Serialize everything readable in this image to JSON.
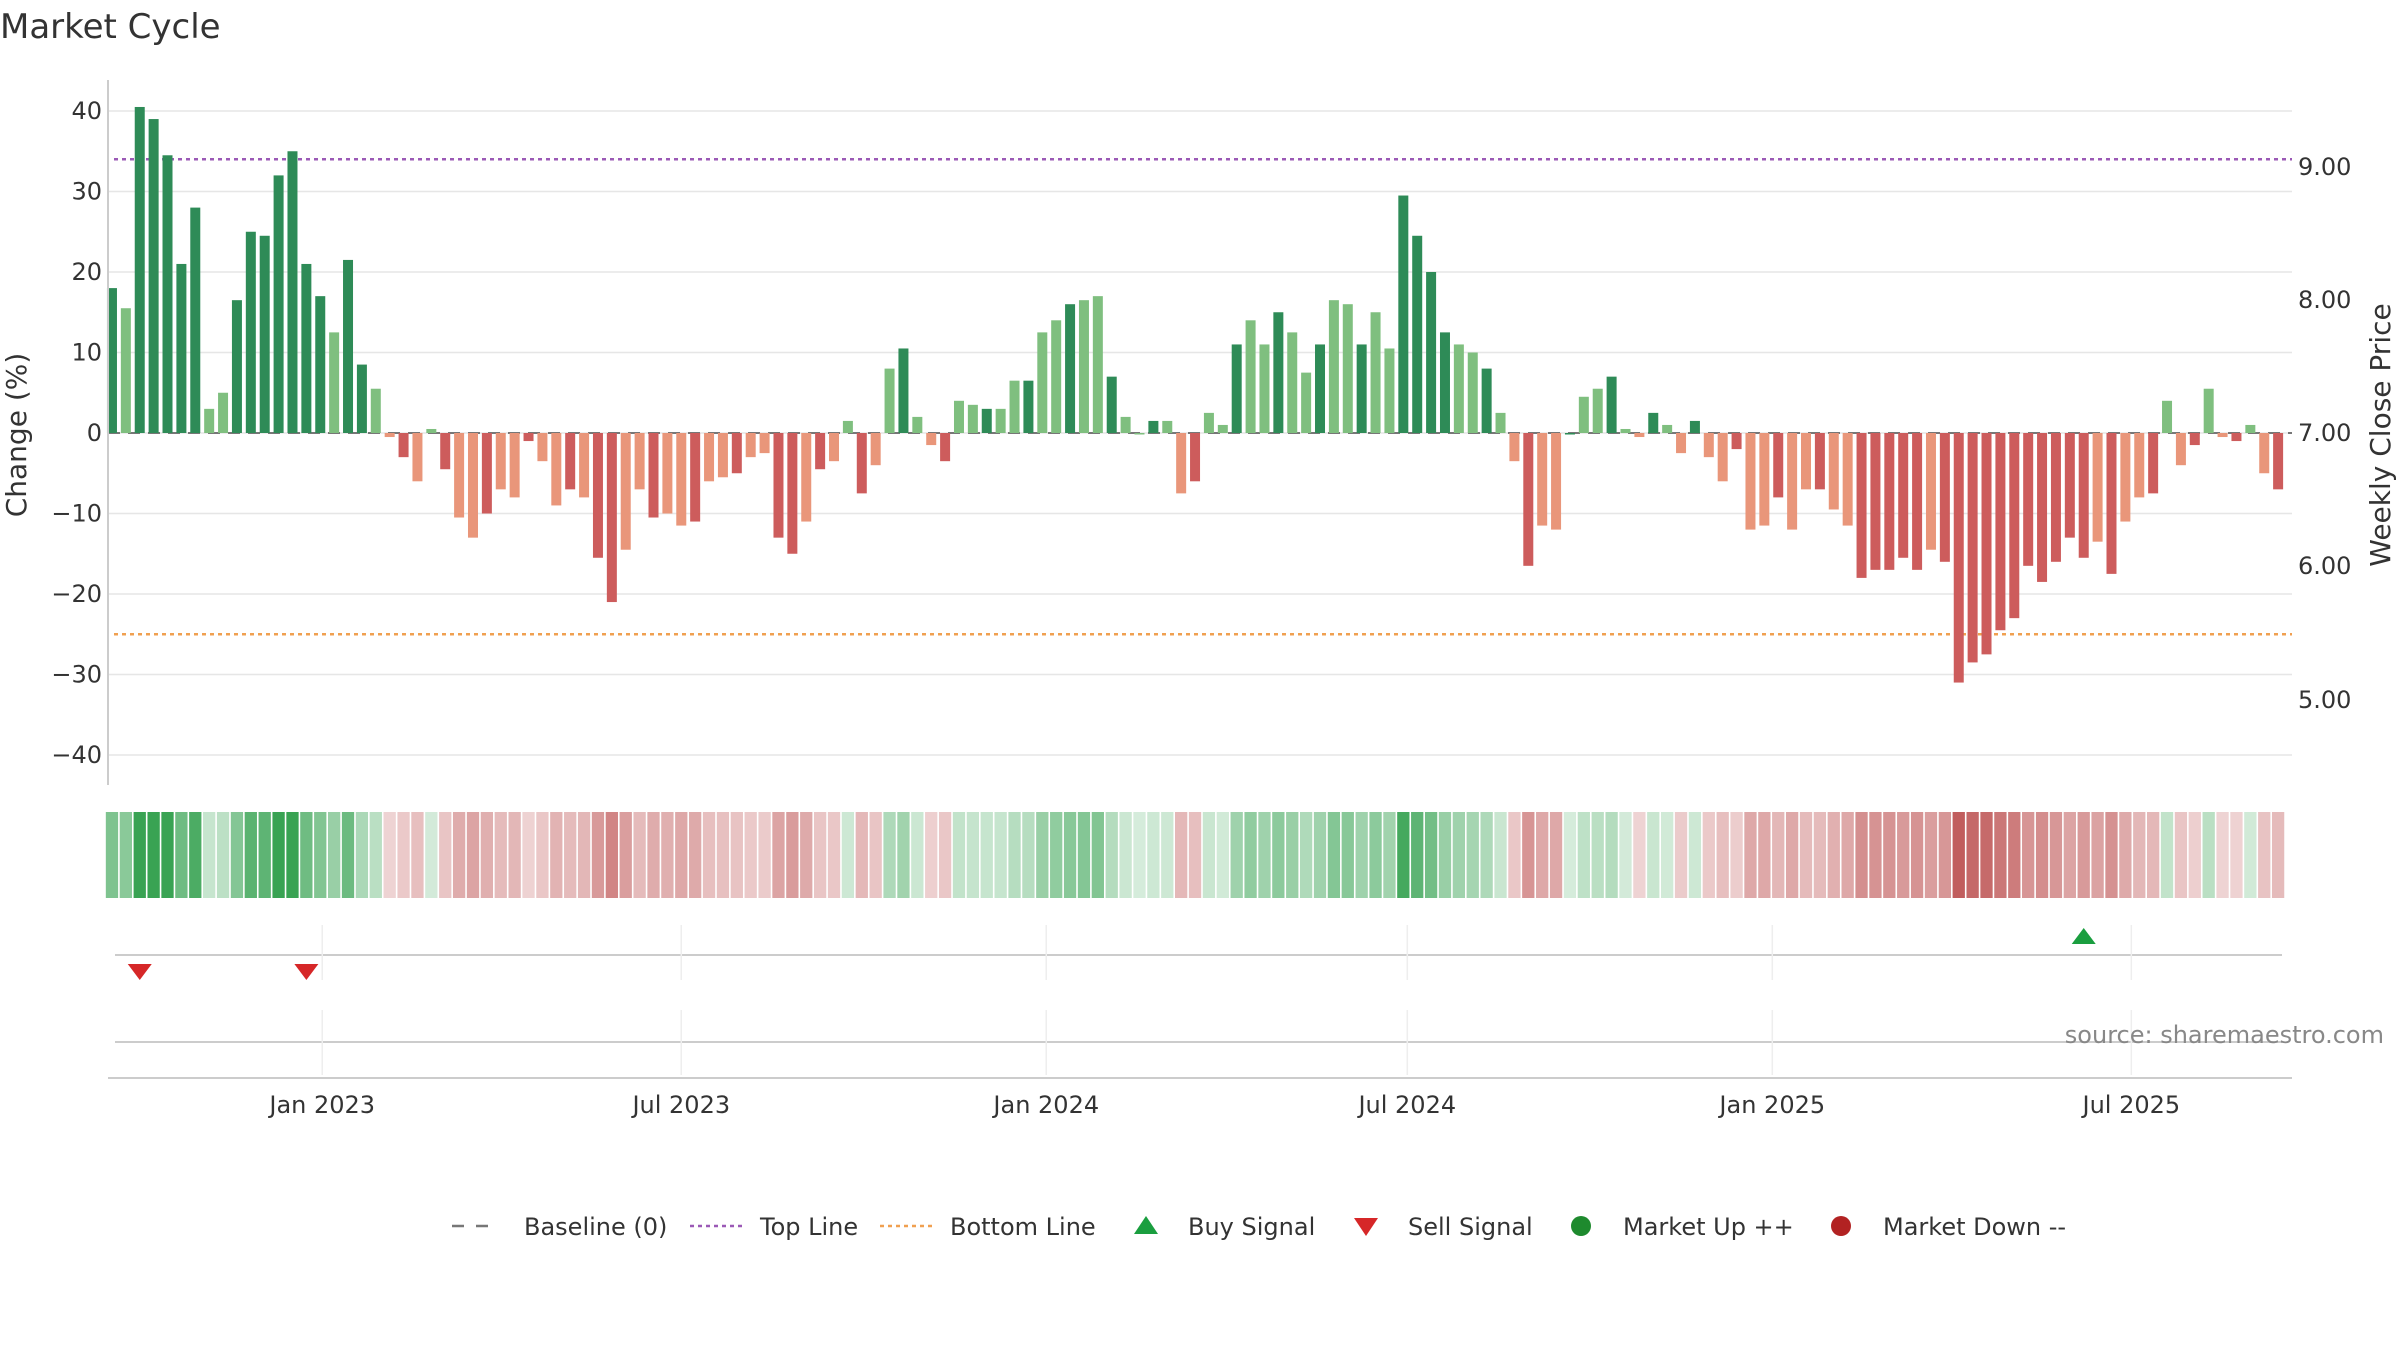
{
  "chart_data": {
    "type": "bar",
    "title": "Market Cycle",
    "ylabel_left": "Change (%)",
    "ylabel_right": "Weekly Close Price",
    "source": "source: sharemaestro.com",
    "ylim_left": [
      -42,
      44
    ],
    "yticks_left": [
      40,
      30,
      20,
      10,
      0,
      -10,
      -20,
      -30,
      -40
    ],
    "yticks_left_labels": [
      "40",
      "30",
      "20",
      "10",
      "0",
      "−10",
      "−20",
      "−30",
      "−40"
    ],
    "yticks_right": [
      9.0,
      8.0,
      7.0,
      6.0,
      5.0
    ],
    "yticks_right_labels": [
      "9.00",
      "8.00",
      "7.00",
      "6.00",
      "5.00"
    ],
    "x_start": "2022-09-15",
    "x_end": "2025-09-20",
    "x_ticks": [
      {
        "date": "2023-01-01",
        "label": "Jan 2023"
      },
      {
        "date": "2023-07-01",
        "label": "Jul 2023"
      },
      {
        "date": "2024-01-01",
        "label": "Jan 2024"
      },
      {
        "date": "2024-07-01",
        "label": "Jul 2024"
      },
      {
        "date": "2025-01-01",
        "label": "Jan 2025"
      },
      {
        "date": "2025-07-01",
        "label": "Jul 2025"
      }
    ],
    "first_week": "2022-09-17",
    "top_line": 34,
    "bottom_line": -25,
    "baseline": 0,
    "values": [
      18,
      15.5,
      40.5,
      39,
      34.5,
      21,
      28,
      3,
      5,
      16.5,
      25,
      24.5,
      32,
      35,
      21,
      17,
      12.5,
      21.5,
      8.5,
      5.5,
      -0.5,
      -3,
      -6,
      0.5,
      -4.5,
      -10.5,
      -13,
      -10,
      -7,
      -8,
      -1,
      -3.5,
      -9,
      -7,
      -8,
      -15.5,
      -21,
      -14.5,
      -7,
      -10.5,
      -10,
      -11.5,
      -11,
      -6,
      -5.5,
      -5,
      -3,
      -2.5,
      -13,
      -15,
      -11,
      -4.5,
      -3.5,
      1.5,
      -7.5,
      -4,
      8,
      10.5,
      2,
      -1.5,
      -3.5,
      4,
      3.5,
      3,
      3,
      6.5,
      6.5,
      12.5,
      14,
      16,
      16.5,
      17,
      7,
      2,
      0,
      1.5,
      1.5,
      -7.5,
      -6,
      2.5,
      1,
      11,
      14,
      11,
      15,
      12.5,
      7.5,
      11,
      16.5,
      16,
      11,
      15,
      10.5,
      29.5,
      24.5,
      20,
      12.5,
      11,
      10,
      8,
      2.5,
      -3.5,
      -16.5,
      -11.5,
      -12,
      0,
      4.5,
      5.5,
      7,
      0.5,
      -0.5,
      2.5,
      1,
      -2.5,
      1.5,
      -3,
      -6,
      -2,
      -12,
      -11.5,
      -8,
      -12,
      -7,
      -7,
      -9.5,
      -11.5,
      -18,
      -17,
      -17,
      -15.5,
      -17,
      -14.5,
      -16,
      -31,
      -28.5,
      -27.5,
      -24.5,
      -23,
      -16.5,
      -18.5,
      -16,
      -13,
      -15.5,
      -13.5,
      -17.5,
      -11,
      -8,
      -7.5,
      4,
      -4,
      -1.5,
      5.5,
      -0.5,
      -1,
      1,
      -5,
      -7
    ]
  },
  "strip": {
    "label": "",
    "note": "momentum heat strip"
  },
  "signals": {
    "sell_weeks": [
      2,
      14
    ],
    "buy_weeks": [
      142
    ]
  },
  "legend": {
    "items": [
      {
        "key": "baseline",
        "label": "Baseline (0)",
        "color": "#777777"
      },
      {
        "key": "top",
        "label": "Top Line",
        "color": "#9b59b6"
      },
      {
        "key": "bottom",
        "label": "Bottom Line",
        "color": "#f0a050"
      },
      {
        "key": "buy",
        "label": "Buy Signal",
        "color": "#1a9e3f"
      },
      {
        "key": "sell",
        "label": "Sell Signal",
        "color": "#d62728"
      },
      {
        "key": "mup",
        "label": "Market Up ++",
        "color": "#1e8a2e"
      },
      {
        "key": "mdown",
        "label": "Market Down --",
        "color": "#b22222"
      }
    ]
  },
  "colors": {
    "strong_up": "#2e8b57",
    "weak_up": "#7fbf7f",
    "strong_down": "#cd5c5c",
    "weak_down": "#e9967a",
    "top_line": "#9b59b6",
    "bottom_line": "#f0a050",
    "grid": "#e6e6e6"
  }
}
